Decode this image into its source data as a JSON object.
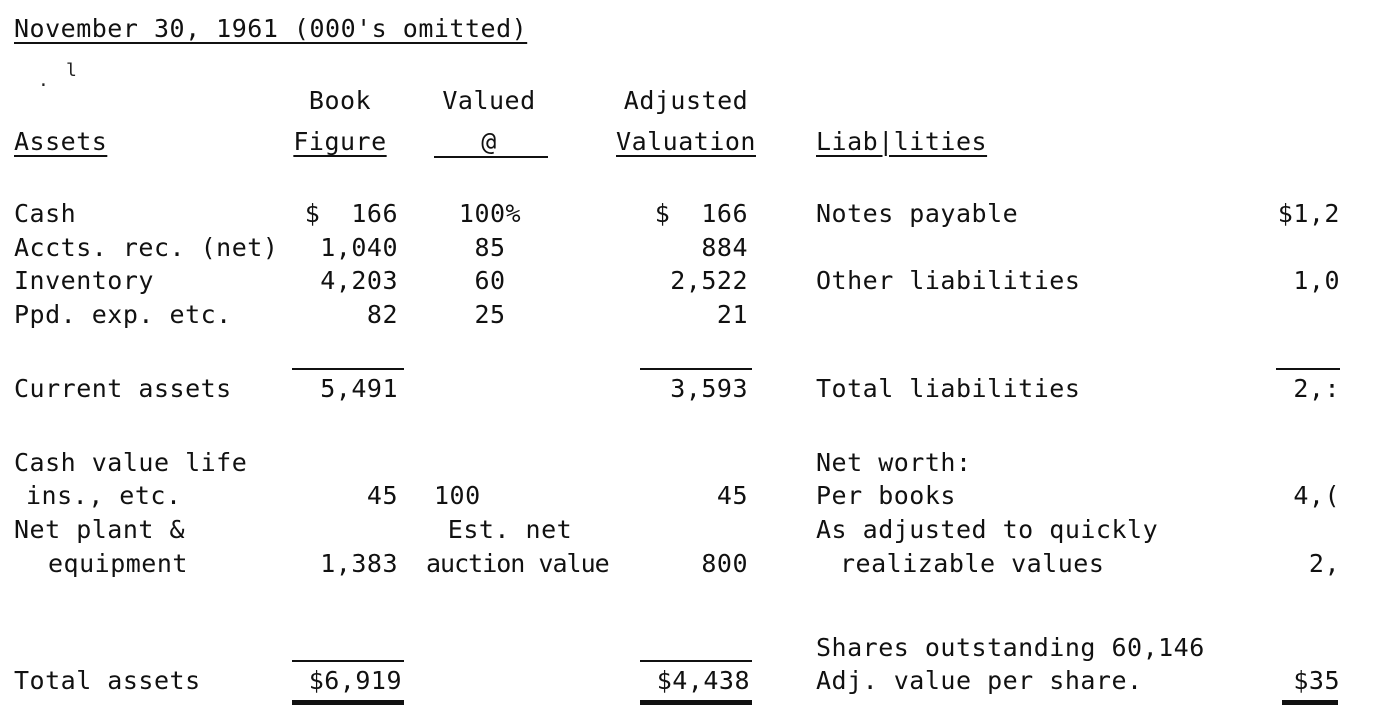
{
  "title": "November 30, 1961 (000's omitted)",
  "stray_marks": [
    ".",
    "l"
  ],
  "headers": {
    "assets": "Assets",
    "book_1": "Book",
    "book_2": "Figure",
    "valued_1": "Valued",
    "valued_2": "@",
    "adjusted_1": "Adjusted",
    "adjusted_2": "Valuation",
    "liabilities": "Liab|lities"
  },
  "asset_rows": [
    {
      "label": "Cash",
      "book": "$  166",
      "valued": "100%",
      "adjusted": "$  166"
    },
    {
      "label": "Accts. rec. (net)",
      "book": "1,040",
      "valued": "85",
      "adjusted": "884"
    },
    {
      "label": "Inventory",
      "book": "4,203",
      "valued": "60",
      "adjusted": "2,522"
    },
    {
      "label": "Ppd. exp. etc.",
      "book": "82",
      "valued": "25",
      "adjusted": "21"
    }
  ],
  "current_assets": {
    "label": "Current assets",
    "book": "5,491",
    "adjusted": "3,593"
  },
  "life_ins": {
    "label_1": "Cash value life",
    "label_2": "ins., etc.",
    "book": "45",
    "valued": "100",
    "adjusted": "45"
  },
  "plant": {
    "label_1": "Net plant &",
    "label_2": "equipment",
    "book": "1,383",
    "valued_1": "Est. net",
    "valued_2": "auction value",
    "adjusted": "800"
  },
  "total_assets": {
    "label": "Total assets",
    "book": "$6,919",
    "adjusted": "$4,438"
  },
  "liabilities": {
    "notes": {
      "label": "Notes payable",
      "value": "$1,2"
    },
    "other": {
      "label": "Other liabilities",
      "value": "1,0"
    },
    "total": {
      "label": "Total liabilities",
      "value": "2,:"
    },
    "net_worth_label": "Net worth:",
    "per_books": {
      "label": "Per books",
      "value": "4,("
    },
    "adjusted_1": "As adjusted to quickly",
    "adjusted_2": "realizable values",
    "adjusted_value": "2,",
    "shares": "Shares outstanding 60,146",
    "per_share": {
      "label": "Adj. value per share.",
      "value": "$35"
    }
  }
}
